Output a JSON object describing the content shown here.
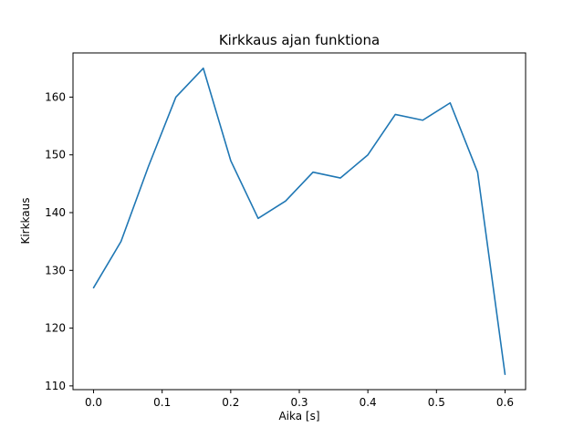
{
  "chart_data": {
    "type": "line",
    "title": "Kirkkaus ajan funktiona",
    "xlabel": "Aika [s]",
    "ylabel": "Kirkkaus",
    "x": [
      0.0,
      0.04,
      0.08,
      0.12,
      0.16,
      0.2,
      0.24,
      0.28,
      0.32,
      0.36,
      0.4,
      0.44,
      0.48,
      0.52,
      0.56,
      0.6
    ],
    "values": [
      127,
      135,
      148,
      160,
      165,
      149,
      139,
      142,
      147,
      146,
      150,
      157,
      156,
      159,
      147,
      112
    ],
    "xlim": [
      -0.03,
      0.63
    ],
    "ylim": [
      109.35,
      167.65
    ],
    "xticks": [
      0.0,
      0.1,
      0.2,
      0.3,
      0.4,
      0.5,
      0.6
    ],
    "xtick_labels": [
      "0.0",
      "0.1",
      "0.2",
      "0.3",
      "0.4",
      "0.5",
      "0.6"
    ],
    "yticks": [
      110,
      120,
      130,
      140,
      150,
      160
    ],
    "ytick_labels": [
      "110",
      "120",
      "130",
      "140",
      "150",
      "160"
    ],
    "line_color": "#1f77b4",
    "axis_color": "#000000",
    "grid": false,
    "legend": null
  }
}
